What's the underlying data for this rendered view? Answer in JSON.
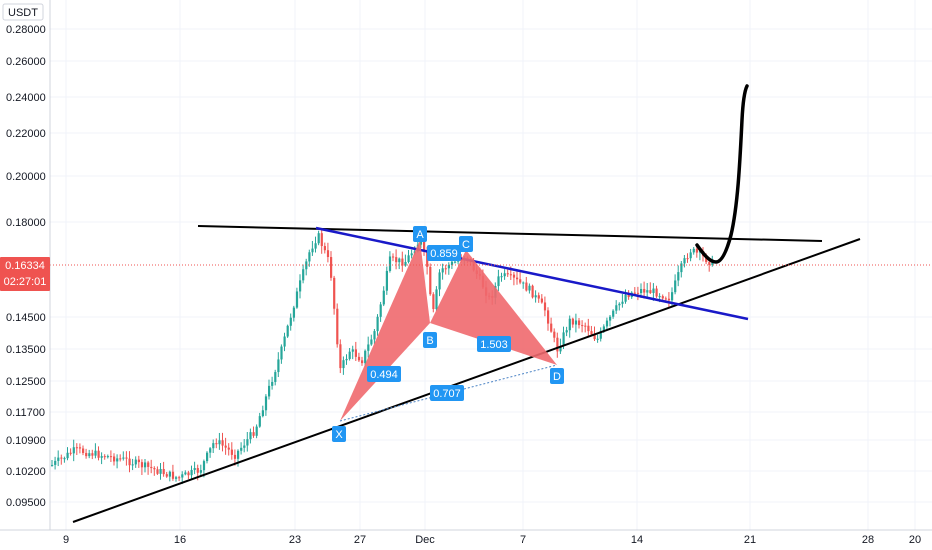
{
  "chart_data": {
    "type": "candlestick",
    "currency_label": "USDT",
    "y_ticks": [
      "0.28000",
      "0.26000",
      "0.24000",
      "0.22000",
      "0.20000",
      "0.18000",
      "0.14500",
      "0.13500",
      "0.12500",
      "0.11700",
      "0.10900",
      "0.10200",
      "0.09500"
    ],
    "x_ticks": [
      "9",
      "16",
      "23",
      "27",
      "Dec",
      "7",
      "14",
      "21",
      "28",
      "20"
    ],
    "current_price": "0.16334",
    "countdown": "02:27:01",
    "pattern_points": [
      "X",
      "A",
      "B",
      "C",
      "D"
    ],
    "ratios": [
      "0.494",
      "0.859",
      "1.503",
      "0.707"
    ],
    "colors": {
      "up": "#26a69a",
      "down": "#ef5350",
      "trend": "#000000",
      "channel": "#1919c8",
      "pattern": "#f0696e",
      "label_bg": "#2196f3",
      "price_line": "#ef5350"
    },
    "ohlc": [],
    "grid": true
  }
}
